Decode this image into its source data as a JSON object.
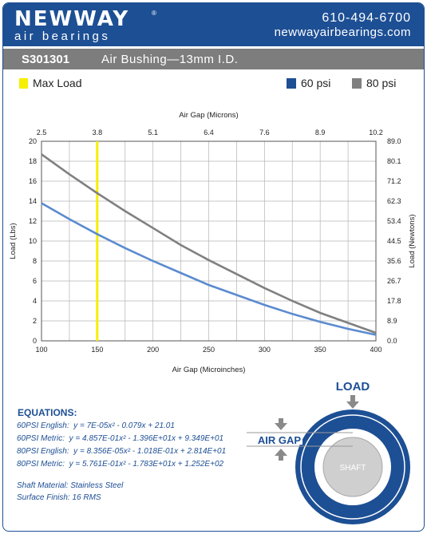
{
  "header": {
    "logo_main": "NEWWAY",
    "logo_reg": "®",
    "logo_sub": "air bearings",
    "phone": "610-494-6700",
    "website": "newwayairbearings.com"
  },
  "title_bar": {
    "part_number": "S301301",
    "description": "Air Bushing—13mm I.D."
  },
  "legend": {
    "max_load": "Max Load",
    "psi60": "60 psi",
    "psi80": "80 psi"
  },
  "colors": {
    "brand": "#1d4f94",
    "title_bar": "#7d7d7d",
    "series_60": "#5b8bd0",
    "series_80": "#808080",
    "max_load": "#f6ef00",
    "grid": "#b5b5b5"
  },
  "chart_data": {
    "type": "line",
    "xlabel": "Air Gap (Microinches)",
    "x2label": "Air Gap (Microns)",
    "ylabel": "Load (Lbs)",
    "y2label": "Load (Newtons)",
    "xlim": [
      100,
      400
    ],
    "ylim": [
      0,
      20
    ],
    "x_ticks": [
      "100",
      "150",
      "200",
      "250",
      "300",
      "350",
      "400"
    ],
    "x2_ticks": [
      "2.5",
      "3.8",
      "5.1",
      "6.4",
      "7.6",
      "8.9",
      "10.2"
    ],
    "y_ticks": [
      "0",
      "2",
      "4",
      "6",
      "8",
      "10",
      "12",
      "14",
      "16",
      "18",
      "20"
    ],
    "y2_ticks": [
      "0.0",
      "8.9",
      "17.8",
      "26.7",
      "35.6",
      "44.5",
      "53.4",
      "62.3",
      "71.2",
      "80.1",
      "89.0"
    ],
    "grid": true,
    "max_load_x": 150,
    "series": [
      {
        "name": "60 psi",
        "x": [
          100,
          125,
          150,
          175,
          200,
          225,
          250,
          275,
          300,
          325,
          350,
          375,
          400
        ],
        "values": [
          13.8,
          12.2,
          10.7,
          9.3,
          8.0,
          6.8,
          5.6,
          4.6,
          3.6,
          2.7,
          1.9,
          1.2,
          0.6
        ]
      },
      {
        "name": "80 psi",
        "x": [
          100,
          125,
          150,
          175,
          200,
          225,
          250,
          275,
          300,
          325,
          350,
          375,
          400
        ],
        "values": [
          18.7,
          16.7,
          14.8,
          13.0,
          11.3,
          9.6,
          8.1,
          6.7,
          5.3,
          4.0,
          2.8,
          1.8,
          0.8
        ]
      }
    ]
  },
  "equations": {
    "title": "EQUATIONS:",
    "lines": [
      {
        "label": "60PSI English:",
        "formula": "y = 7E-05x² - 0.079x + 21.01"
      },
      {
        "label": "60PSI Metric:",
        "formula": "y = 4.857E-01x² - 1.396E+01x + 9.349E+01"
      },
      {
        "label": "80PSI English:",
        "formula": "y = 8.356E-05x² - 1.018E-01x + 2.814E+01"
      },
      {
        "label": "80PSI Metric:",
        "formula": "y = 5.761E-01x² - 1.783E+01x + 1.252E+02"
      }
    ]
  },
  "specs": {
    "material": "Shaft Material:  Stainless Steel",
    "finish": "Surface Finish:  16 RMS"
  },
  "diagram": {
    "load_label": "LOAD",
    "air_gap_label": "AIR GAP",
    "shaft_label": "SHAFT"
  }
}
